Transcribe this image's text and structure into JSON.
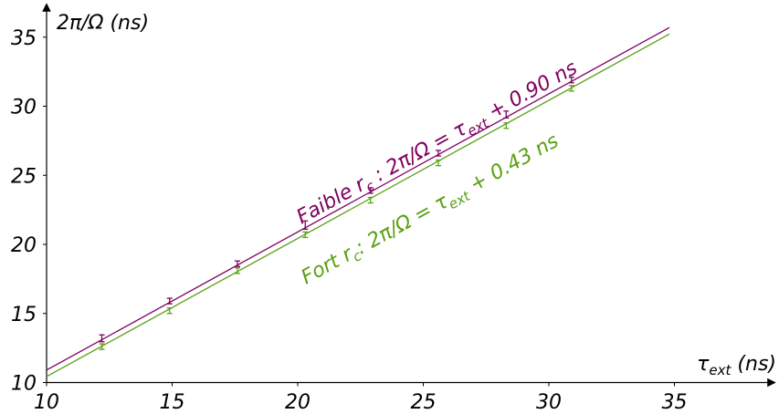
{
  "chart_data": {
    "type": "scatter",
    "title": "",
    "xlabel": {
      "base": "τ",
      "sub": "ext",
      "rest": " (ns)"
    },
    "ylabel": "2π/Ω (ns)",
    "xlim": [
      10,
      35
    ],
    "ylim": [
      10,
      36
    ],
    "xticks": [
      10,
      15,
      20,
      25,
      30,
      35
    ],
    "yticks": [
      10,
      15,
      20,
      25,
      30,
      35
    ],
    "grid": false,
    "series": [
      {
        "color": "#800060",
        "points": [
          {
            "x": 12.2,
            "y": 13.2,
            "err": 0.25
          },
          {
            "x": 14.9,
            "y": 15.9,
            "err": 0.2
          },
          {
            "x": 17.6,
            "y": 18.6,
            "err": 0.2
          },
          {
            "x": 20.3,
            "y": 21.4,
            "err": 0.3
          },
          {
            "x": 22.9,
            "y": 23.9,
            "err": 0.2
          },
          {
            "x": 25.6,
            "y": 26.6,
            "err": 0.2
          },
          {
            "x": 28.3,
            "y": 29.4,
            "err": 0.25
          },
          {
            "x": 30.9,
            "y": 31.9,
            "err": 0.2
          }
        ],
        "fit": {
          "slope": 1,
          "intercept": 0.9,
          "x_range": [
            10,
            34.8
          ]
        },
        "annotation": {
          "prefix": "Faible r",
          "sub1": "c",
          "mid": " : 2π/Ω = τ",
          "sub2": "ext",
          "suffix": " + 0.90 ns"
        }
      },
      {
        "color": "#5aa012",
        "points": [
          {
            "x": 12.2,
            "y": 12.6,
            "err": 0.2
          },
          {
            "x": 14.9,
            "y": 15.2,
            "err": 0.2
          },
          {
            "x": 17.6,
            "y": 18.1,
            "err": 0.2
          },
          {
            "x": 20.3,
            "y": 20.7,
            "err": 0.2
          },
          {
            "x": 22.9,
            "y": 23.2,
            "err": 0.2
          },
          {
            "x": 25.6,
            "y": 25.9,
            "err": 0.2
          },
          {
            "x": 28.3,
            "y": 28.6,
            "err": 0.2
          },
          {
            "x": 30.9,
            "y": 31.3,
            "err": 0.2
          }
        ],
        "fit": {
          "slope": 1,
          "intercept": 0.43,
          "x_range": [
            10,
            34.8
          ]
        },
        "annotation": {
          "prefix": "Fort r",
          "sub1": "c",
          "mid": ": 2π/Ω = τ",
          "sub2": "ext",
          "suffix": " + 0.43 ns"
        }
      }
    ]
  }
}
